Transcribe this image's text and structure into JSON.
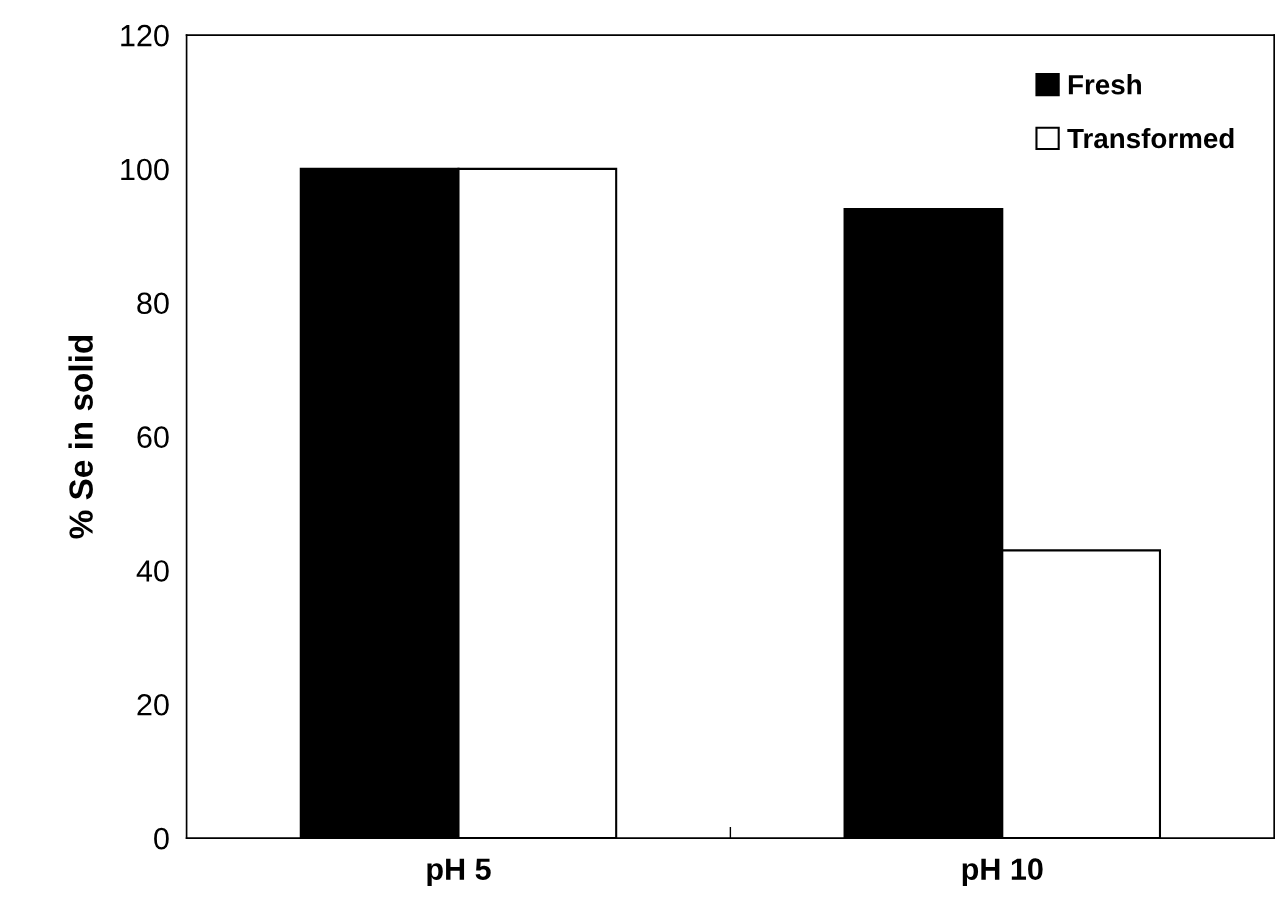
{
  "chart_data": {
    "type": "bar",
    "ylabel": "% Se in solid",
    "categories": [
      "pH 5",
      "pH 10"
    ],
    "series": [
      {
        "name": "Fresh",
        "color": "#000000",
        "values": [
          100,
          94
        ]
      },
      {
        "name": "Transformed",
        "color": "#ffffff",
        "values": [
          100,
          43
        ]
      }
    ],
    "ylim": [
      0,
      120
    ],
    "yticks": [
      0,
      20,
      40,
      60,
      80,
      100,
      120
    ],
    "grid": false,
    "legend": "top right"
  }
}
